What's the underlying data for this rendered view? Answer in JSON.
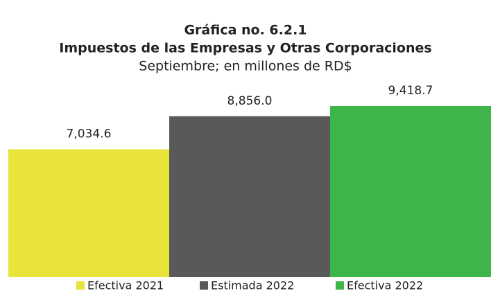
{
  "chart_data": {
    "type": "bar",
    "title": "Gráfica no. 6.2.1",
    "subtitle_main": "Impuestos de las Empresas y Otras Corporaciones",
    "subtitle": "Septiembre; en millones de RD$",
    "categories": [
      "Efectiva 2021",
      "Estimada 2022",
      "Efectiva 2022"
    ],
    "values": [
      7034.6,
      8856.0,
      9418.7
    ],
    "value_labels": [
      "7,034.6",
      "8,856.0",
      "9,418.7"
    ],
    "colors": [
      "#e8e43a",
      "#595959",
      "#3db54b"
    ],
    "legend": "bottom"
  }
}
